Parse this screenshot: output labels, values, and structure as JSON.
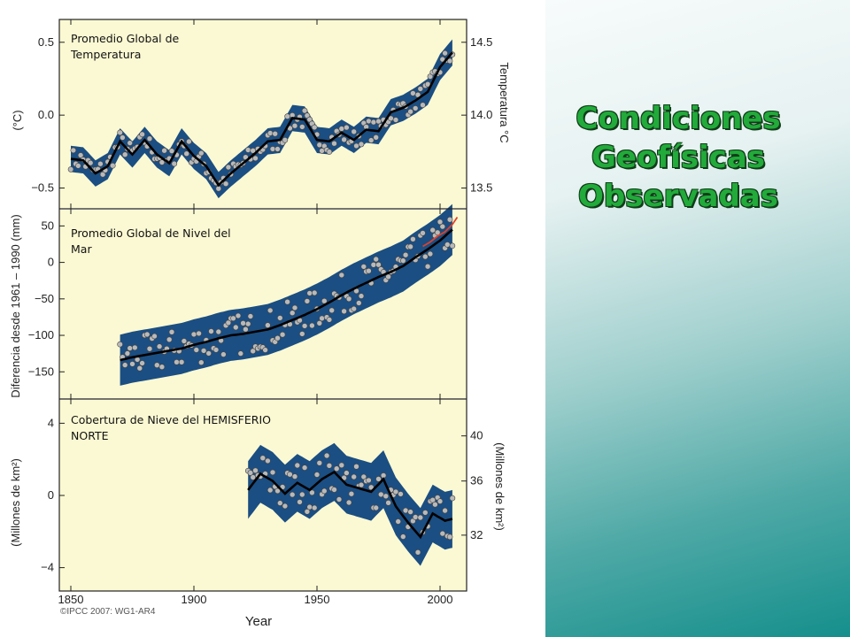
{
  "slide": {
    "title_lines": [
      "Condiciones",
      "Geofísicas",
      "Observadas"
    ],
    "title_color": "#22aa3a",
    "band_color": "#1b4e82",
    "panel_bg": "#fbf9d3"
  },
  "chart_data": [
    {
      "type": "line",
      "title_lines": [
        "Promedio Global de",
        "Temperatura"
      ],
      "ylabel": "(°C)",
      "ylabel_right": "Temperatura °C",
      "yticks": [
        "0.5",
        "0.0",
        "−0.5"
      ],
      "yticks_right": [
        "14.5",
        "14.0",
        "13.5"
      ],
      "ylim": [
        -0.6,
        0.62
      ],
      "x": [
        1850,
        1855,
        1860,
        1865,
        1870,
        1875,
        1880,
        1885,
        1890,
        1895,
        1900,
        1905,
        1910,
        1915,
        1920,
        1925,
        1930,
        1935,
        1940,
        1945,
        1950,
        1955,
        1960,
        1965,
        1970,
        1975,
        1980,
        1985,
        1990,
        1995,
        2000,
        2005
      ],
      "smooth": [
        -0.3,
        -0.31,
        -0.4,
        -0.35,
        -0.18,
        -0.27,
        -0.17,
        -0.27,
        -0.33,
        -0.18,
        -0.28,
        -0.35,
        -0.48,
        -0.4,
        -0.33,
        -0.26,
        -0.18,
        -0.17,
        -0.02,
        -0.03,
        -0.17,
        -0.18,
        -0.12,
        -0.17,
        -0.1,
        -0.11,
        0.02,
        0.05,
        0.1,
        0.16,
        0.33,
        0.43
      ],
      "band_halfwidth": 0.09
    },
    {
      "type": "line",
      "title_lines": [
        "Promedio Global de Nivel del",
        "Mar"
      ],
      "ylabel": "Diferencia desde 1961 – 1990 (mm)",
      "yticks": [
        "50",
        "0",
        "−50",
        "−100",
        "−150"
      ],
      "ylim": [
        -180,
        65
      ],
      "x": [
        1870,
        1875,
        1880,
        1885,
        1890,
        1895,
        1900,
        1905,
        1910,
        1915,
        1920,
        1925,
        1930,
        1935,
        1940,
        1945,
        1950,
        1955,
        1960,
        1965,
        1970,
        1975,
        1980,
        1985,
        1990,
        1995,
        2000,
        2005
      ],
      "smooth": [
        -134,
        -130,
        -127,
        -124,
        -121,
        -118,
        -113,
        -109,
        -104,
        -100,
        -98,
        -95,
        -92,
        -86,
        -79,
        -72,
        -64,
        -55,
        -45,
        -36,
        -28,
        -20,
        -13,
        -5,
        7,
        18,
        30,
        45
      ],
      "band_halfwidth": 35,
      "satellite_x": [
        1993,
        1996,
        1999,
        2002,
        2005,
        2007
      ],
      "satellite_y": [
        22,
        28,
        36,
        42,
        52,
        62
      ]
    },
    {
      "type": "line",
      "title_lines": [
        "Cobertura de Nieve del HEMISFERIO",
        "NORTE"
      ],
      "ylabel": "(Millones de km²)",
      "ylabel_right": "(Millones de km²)",
      "yticks": [
        "4",
        "0",
        "−4"
      ],
      "yticks_right": [
        "40",
        "36",
        "32"
      ],
      "ylim": [
        -5,
        5
      ],
      "x": [
        1922,
        1927,
        1932,
        1937,
        1942,
        1947,
        1952,
        1957,
        1962,
        1967,
        1972,
        1977,
        1982,
        1987,
        1992,
        1997,
        2002,
        2005
      ],
      "smooth": [
        0.3,
        1.2,
        0.8,
        0.1,
        0.7,
        0.3,
        0.9,
        1.3,
        0.6,
        0.4,
        0.2,
        0.9,
        -0.6,
        -1.5,
        -2.3,
        -1.0,
        -1.4,
        -1.3
      ],
      "band_halfwidth": 1.6
    }
  ],
  "xaxis": {
    "ticks": [
      "1850",
      "1900",
      "1950",
      "2000"
    ],
    "label": "Year",
    "credit": "©IPCC 2007: WG1-AR4"
  }
}
